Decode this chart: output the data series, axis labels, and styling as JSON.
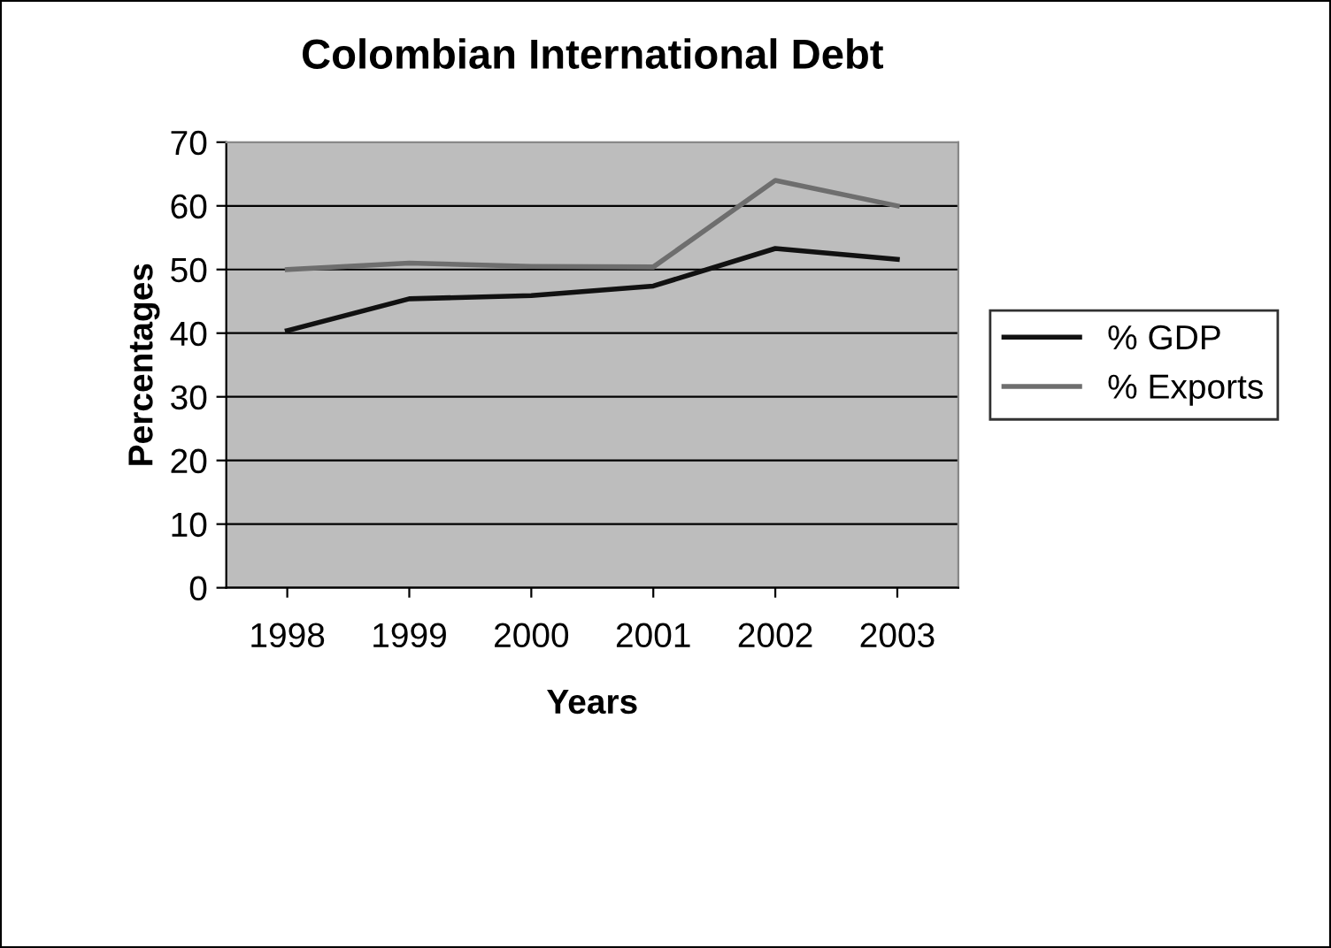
{
  "chart_data": {
    "type": "line",
    "title": "Colombian International Debt",
    "xlabel": "Years",
    "ylabel": "Percentages",
    "categories": [
      "1998",
      "1999",
      "2000",
      "2001",
      "2002",
      "2003"
    ],
    "series": [
      {
        "name": "% GDP",
        "color": "#111111",
        "values": [
          40.4,
          45.4,
          45.9,
          47.4,
          53.3,
          51.6
        ]
      },
      {
        "name": "% Exports",
        "color": "#6e6e6e",
        "values": [
          50,
          51,
          50.5,
          50.4,
          64,
          60
        ]
      }
    ],
    "ylim": [
      0,
      70
    ],
    "yticks": [
      0,
      10,
      20,
      30,
      40,
      50,
      60,
      70
    ],
    "grid": "y",
    "legend": "right",
    "marker": "none",
    "line_style": "solid"
  }
}
